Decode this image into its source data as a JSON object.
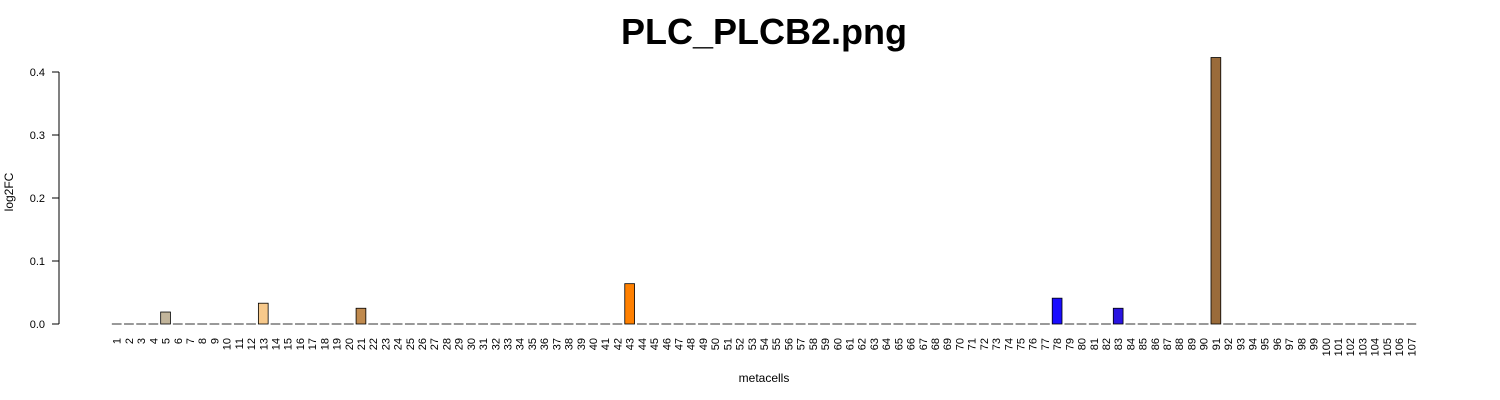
{
  "chart_data": {
    "type": "bar",
    "title": "PLC_PLCB2.png",
    "xlabel": "metacells",
    "ylabel": "log2FC",
    "ylim": [
      0,
      0.4
    ],
    "yticks": [
      "0.0",
      "0.1",
      "0.2",
      "0.3",
      "0.4"
    ],
    "grid": false,
    "categories": [
      "1",
      "2",
      "3",
      "4",
      "5",
      "6",
      "7",
      "8",
      "9",
      "10",
      "11",
      "12",
      "13",
      "14",
      "15",
      "16",
      "17",
      "18",
      "19",
      "20",
      "21",
      "22",
      "23",
      "24",
      "25",
      "26",
      "27",
      "28",
      "29",
      "30",
      "31",
      "32",
      "33",
      "34",
      "35",
      "36",
      "37",
      "38",
      "39",
      "40",
      "41",
      "42",
      "43",
      "44",
      "45",
      "46",
      "47",
      "48",
      "49",
      "50",
      "51",
      "52",
      "53",
      "54",
      "55",
      "56",
      "57",
      "58",
      "59",
      "60",
      "61",
      "62",
      "63",
      "64",
      "65",
      "66",
      "67",
      "68",
      "69",
      "70",
      "71",
      "72",
      "73",
      "74",
      "75",
      "76",
      "77",
      "78",
      "79",
      "80",
      "81",
      "82",
      "83",
      "84",
      "85",
      "86",
      "87",
      "88",
      "89",
      "90",
      "91",
      "92",
      "93",
      "94",
      "95",
      "96",
      "97",
      "98",
      "99",
      "100",
      "101",
      "102",
      "103",
      "104",
      "105",
      "106",
      "107"
    ],
    "values": [
      0,
      0,
      0,
      0,
      0.019,
      0,
      0,
      0,
      0,
      0,
      0,
      0,
      0.033,
      0,
      0,
      0,
      0,
      0,
      0,
      0,
      0.025,
      0,
      0,
      0,
      0,
      0,
      0,
      0,
      0,
      0,
      0,
      0,
      0,
      0,
      0,
      0,
      0,
      0,
      0,
      0,
      0,
      0,
      0.064,
      0,
      0,
      0,
      0,
      0,
      0,
      0,
      0,
      0,
      0,
      0,
      0,
      0,
      0,
      0,
      0,
      0,
      0,
      0,
      0,
      0,
      0,
      0,
      0,
      0,
      0,
      0,
      0,
      0,
      0,
      0,
      0,
      0,
      0,
      0.041,
      0,
      0,
      0,
      0,
      0.025,
      0,
      0,
      0,
      0,
      0,
      0,
      0,
      0.423,
      0,
      0,
      0,
      0,
      0,
      0,
      0,
      0,
      0,
      0,
      0,
      0,
      0,
      0,
      0,
      0
    ],
    "colors": {
      "default": "#999999",
      "5": "#c2b59b",
      "13": "#f7c98b",
      "21": "#c08a4e",
      "43": "#ff8000",
      "78": "#1a0dff",
      "83": "#2a14e0",
      "91": "#9a6b3a"
    }
  }
}
